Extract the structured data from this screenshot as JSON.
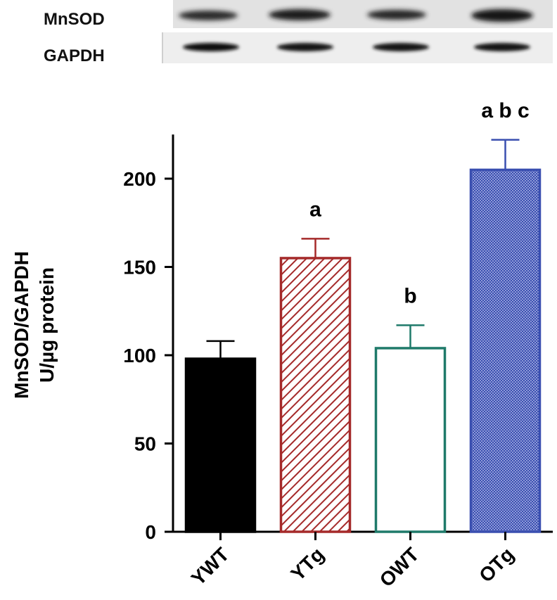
{
  "blot": {
    "rows": [
      {
        "label": "MnSOD",
        "background": "#e4e4e4"
      },
      {
        "label": "GAPDH",
        "background": "#ececec"
      }
    ]
  },
  "chart_data": {
    "type": "bar",
    "categories": [
      "YWT",
      "YTg",
      "OWT",
      "OTg"
    ],
    "values": [
      98,
      155,
      104,
      205
    ],
    "errors": [
      10,
      11,
      13,
      17
    ],
    "significance": [
      "",
      "a",
      "b",
      "a b c"
    ],
    "ylabel_lines": [
      "MnSOD/GAPDH",
      "U/µg protein"
    ],
    "xlabel": "",
    "yticks": [
      0,
      50,
      100,
      150,
      200
    ],
    "ylim": [
      0,
      225
    ],
    "grid": false,
    "colors": [
      "#000000",
      "#a52a2a",
      "#1f7a6a",
      "#3a4fb0"
    ],
    "fills": [
      "solid",
      "diagonal-hatch",
      "open",
      "crosshatch"
    ]
  }
}
